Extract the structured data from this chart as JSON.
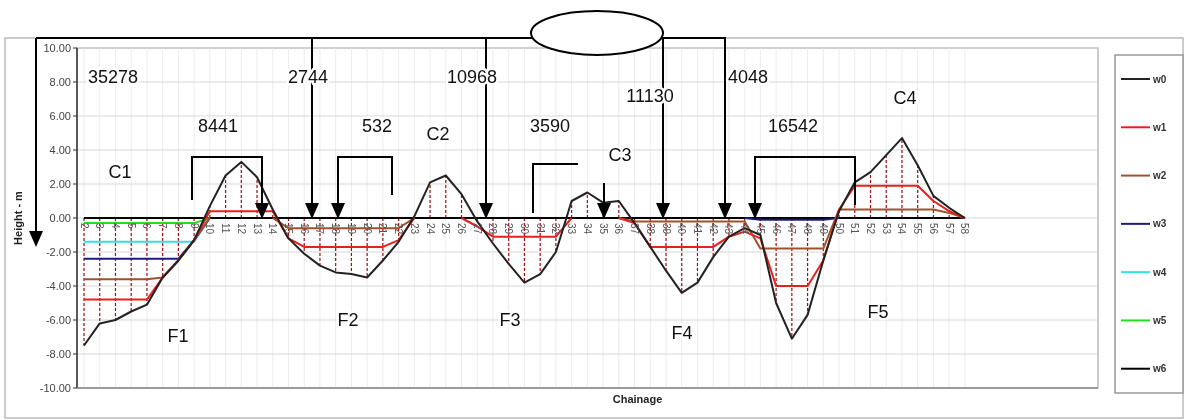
{
  "chart_data": {
    "type": "line",
    "xlabel": "Chainage",
    "ylabel": "Height - m",
    "categories": [
      "2",
      "3",
      "4",
      "5",
      "6",
      "7",
      "8",
      "9",
      "10",
      "11",
      "12",
      "13",
      "14",
      "15",
      "16",
      "17",
      "18",
      "19",
      "20",
      "21",
      "22",
      "23",
      "24",
      "25",
      "26",
      "27",
      "28",
      "29",
      "30",
      "31",
      "32",
      "33",
      "34",
      "35",
      "36",
      "37",
      "38",
      "39",
      "40",
      "41",
      "42",
      "43",
      "44",
      "45",
      "46",
      "47",
      "48",
      "49",
      "50",
      "51",
      "52",
      "53",
      "54",
      "55",
      "56",
      "57",
      "58"
    ],
    "ylim": [
      -10,
      10
    ],
    "yticks": [
      {
        "value": -10,
        "label": "-10.00"
      },
      {
        "value": -8,
        "label": "-8.00"
      },
      {
        "value": -6,
        "label": "-6.00"
      },
      {
        "value": -4,
        "label": "-4.00"
      },
      {
        "value": -2,
        "label": "-2.00"
      },
      {
        "value": 0,
        "label": "0.00"
      },
      {
        "value": 2,
        "label": "2.00"
      },
      {
        "value": 4,
        "label": "4.00"
      },
      {
        "value": 6,
        "label": "6.00"
      },
      {
        "value": 8,
        "label": "8.00"
      },
      {
        "value": 10,
        "label": "10.00"
      }
    ],
    "grid": true,
    "legend": "right",
    "marker": "none",
    "line_style": "solid",
    "series": [
      {
        "name": "w0",
        "color": "#222222",
        "values": [
          -7.5,
          -6.2,
          -6.0,
          -5.5,
          -5.1,
          -3.5,
          -2.5,
          -1.3,
          0.7,
          2.5,
          3.3,
          2.4,
          0.5,
          -1.2,
          -2.1,
          -2.8,
          -3.2,
          -3.3,
          -3.5,
          -2.5,
          -1.4,
          0.1,
          2.1,
          2.5,
          1.4,
          -0.2,
          -1.5,
          -2.7,
          -3.8,
          -3.3,
          -2.0,
          1.0,
          1.5,
          0.9,
          1.0,
          -0.3,
          -1.7,
          -3.1,
          -4.4,
          -3.8,
          -2.3,
          -1.1,
          -0.6,
          -1.0,
          -5.0,
          -7.1,
          -5.7,
          -2.5,
          0.4,
          2.1,
          2.7,
          3.7,
          4.7,
          3.1,
          1.3,
          0.6,
          0
        ]
      },
      {
        "name": "w1",
        "color": "#e8201c",
        "values": [
          -4.8,
          -4.8,
          -4.8,
          -4.8,
          -4.8,
          -3.5,
          -2.5,
          -1.3,
          0.4,
          0.4,
          0.4,
          0.4,
          0.4,
          -1.2,
          -1.7,
          -1.7,
          -1.7,
          -1.7,
          -1.7,
          -1.7,
          -1.3,
          0,
          null,
          null,
          0,
          -0.5,
          -1.1,
          -1.1,
          -1.1,
          -1.1,
          -1.1,
          0,
          null,
          null,
          0,
          -0.3,
          -1.7,
          -1.7,
          -1.7,
          -1.7,
          -1.7,
          -1.1,
          -0.8,
          -1.2,
          -4.0,
          -4.0,
          -4.0,
          -2.5,
          0.5,
          1.9,
          1.9,
          1.9,
          1.9,
          1.9,
          1.0,
          0.4,
          0
        ]
      },
      {
        "name": "w2",
        "color": "#a0522d",
        "values": [
          -3.6,
          -3.6,
          -3.6,
          -3.6,
          -3.6,
          -3.5,
          -2.5,
          -1.3,
          0,
          null,
          null,
          null,
          0,
          -0.6,
          -0.6,
          -0.6,
          -0.6,
          -0.6,
          -0.6,
          -0.6,
          -0.6,
          0,
          null,
          null,
          null,
          null,
          null,
          null,
          null,
          null,
          null,
          null,
          null,
          null,
          0,
          -0.2,
          -0.2,
          -0.2,
          -0.2,
          -0.2,
          -0.2,
          -0.2,
          -0.2,
          -1.8,
          -1.8,
          -1.8,
          -1.8,
          -1.8,
          0.5,
          0.5,
          0.5,
          0.5,
          0.5,
          0.5,
          0.5,
          0.3,
          0
        ]
      },
      {
        "name": "w3",
        "color": "#1c1c80",
        "values": [
          -2.4,
          -2.4,
          -2.4,
          -2.4,
          -2.4,
          -2.4,
          -2.4,
          -1.3,
          0,
          null,
          null,
          null,
          null,
          null,
          null,
          null,
          null,
          null,
          null,
          null,
          null,
          null,
          null,
          null,
          null,
          null,
          null,
          null,
          null,
          null,
          null,
          null,
          null,
          null,
          null,
          null,
          null,
          null,
          null,
          null,
          null,
          null,
          0,
          -0.1,
          -0.1,
          -0.1,
          -0.1,
          -0.1,
          0,
          null,
          null,
          null,
          null,
          null,
          null,
          null,
          null
        ]
      },
      {
        "name": "w4",
        "color": "#33e0e6",
        "values": [
          -1.4,
          -1.4,
          -1.4,
          -1.4,
          -1.4,
          -1.4,
          -1.4,
          -1.4,
          0,
          null,
          null,
          null,
          null,
          null,
          null,
          null,
          null,
          null,
          null,
          null,
          null,
          null,
          null,
          null,
          null,
          null,
          null,
          null,
          null,
          null,
          null,
          null,
          null,
          null,
          null,
          null,
          null,
          null,
          null,
          null,
          null,
          null,
          null,
          null,
          null,
          null,
          null,
          null,
          null,
          null,
          null,
          null,
          null,
          null,
          null,
          null,
          null
        ]
      },
      {
        "name": "w5",
        "color": "#22dd22",
        "values": [
          -0.3,
          -0.3,
          -0.3,
          -0.3,
          -0.3,
          -0.3,
          -0.3,
          -0.3,
          0,
          null,
          null,
          null,
          null,
          null,
          null,
          null,
          null,
          null,
          null,
          null,
          null,
          null,
          null,
          null,
          null,
          null,
          null,
          null,
          null,
          null,
          null,
          null,
          null,
          null,
          null,
          null,
          null,
          null,
          null,
          null,
          null,
          null,
          null,
          null,
          null,
          null,
          null,
          null,
          null,
          null,
          null,
          null,
          null,
          null,
          null,
          null,
          null
        ]
      },
      {
        "name": "w6",
        "color": "#000000",
        "values": [
          0,
          0,
          0,
          0,
          0,
          0,
          0,
          0,
          0,
          0,
          0,
          0,
          0,
          0,
          0,
          0,
          0,
          0,
          0,
          0,
          0,
          0,
          0,
          0,
          0,
          0,
          0,
          0,
          0,
          0,
          0,
          0,
          0,
          0,
          0,
          0,
          0,
          0,
          0,
          0,
          0,
          0,
          0,
          0,
          0,
          0,
          0,
          0,
          0,
          0,
          0,
          0,
          0,
          0,
          0,
          0,
          0
        ]
      }
    ],
    "annotations": [
      "35278",
      "2744",
      "10968",
      "11130",
      "4048",
      "8441",
      "532",
      "3590",
      "16542",
      "C1",
      "C2",
      "C3",
      "C4",
      "F1",
      "F2",
      "F3",
      "F4",
      "F5"
    ]
  }
}
